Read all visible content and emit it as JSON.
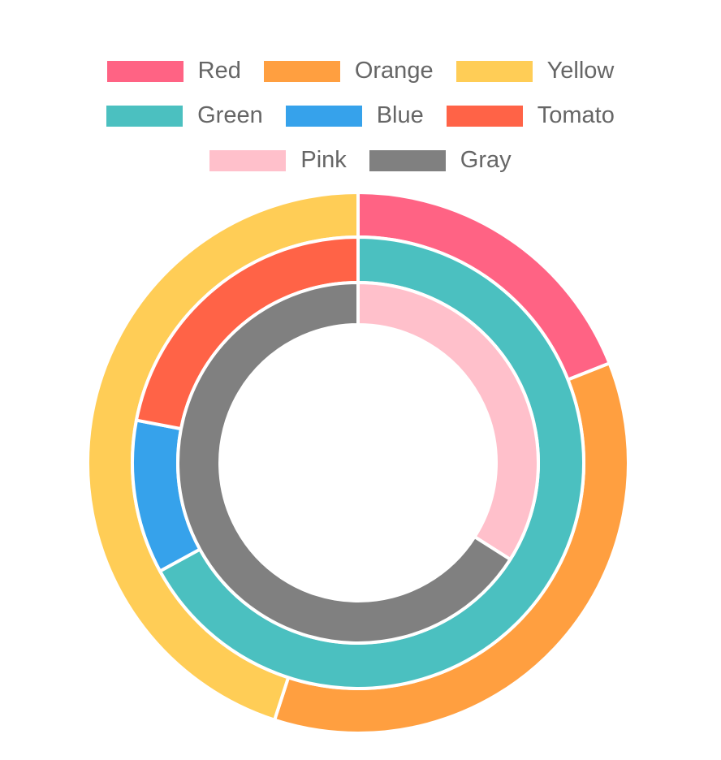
{
  "chart_data": {
    "type": "doughnut",
    "legend": {
      "position": "top",
      "items": [
        {
          "label": "Red",
          "color": "#ff6384"
        },
        {
          "label": "Orange",
          "color": "#ff9f40"
        },
        {
          "label": "Yellow",
          "color": "#ffcd56"
        },
        {
          "label": "Green",
          "color": "#4bc0c0"
        },
        {
          "label": "Blue",
          "color": "#36a2eb"
        },
        {
          "label": "Tomato",
          "color": "#ff6347"
        },
        {
          "label": "Pink",
          "color": "#ffc0cb"
        },
        {
          "label": "Gray",
          "color": "#808080"
        }
      ]
    },
    "rings": [
      {
        "ring": "outer",
        "slices": [
          {
            "label": "Red",
            "value": 19,
            "color": "#ff6384"
          },
          {
            "label": "Orange",
            "value": 36,
            "color": "#ff9f40"
          },
          {
            "label": "Yellow",
            "value": 45,
            "color": "#ffcd56"
          }
        ]
      },
      {
        "ring": "middle",
        "slices": [
          {
            "label": "Green",
            "value": 61,
            "color": "#4bc0c0"
          },
          {
            "label": "Blue",
            "value": 10,
            "color": "#36a2eb"
          },
          {
            "label": "Tomato",
            "value": 20,
            "color": "#ff6347"
          }
        ]
      },
      {
        "ring": "inner",
        "slices": [
          {
            "label": "Pink",
            "value": 34,
            "color": "#ffc0cb"
          },
          {
            "label": "Gray",
            "value": 66,
            "color": "#808080"
          }
        ]
      }
    ]
  }
}
